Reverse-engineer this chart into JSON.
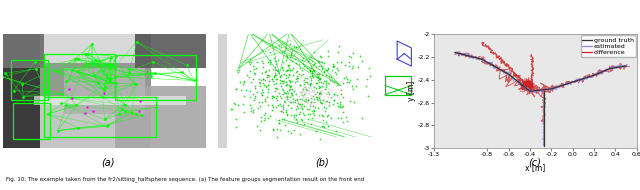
{
  "fig_width": 6.4,
  "fig_height": 1.9,
  "dpi": 100,
  "panel_a_label": "(a)",
  "panel_b_label": "(b)",
  "panel_c_label": "(c)",
  "caption": "Fig. 10: The example taken from the fr2/sitting_halfsphere sequence. (a) The feature groups segmentation result on the front end",
  "plot_c": {
    "xlim": [
      -1.3,
      0.6
    ],
    "ylim": [
      -3.0,
      -2.0
    ],
    "xlabel": "x [m]",
    "ylabel": "y [m]",
    "xticks": [
      -1.3,
      -0.8,
      -0.6,
      -0.4,
      -0.2,
      0.0,
      0.2,
      0.4,
      0.6
    ],
    "ytick_vals": [
      -3.0,
      -2.8,
      -2.6,
      -2.4,
      -2.2,
      -2.0
    ],
    "ytick_labels": [
      "-3",
      "-2.8",
      "-2.6",
      "-2.4",
      "-2.2",
      "-2"
    ],
    "legend": [
      "ground truth",
      "estimated",
      "difference"
    ],
    "ground_truth_color": "#333333",
    "estimated_color": "#8888ee",
    "difference_color": "#cc2222",
    "bg_color": "#e8e8e8"
  },
  "panel_bg_a": "#888888",
  "panel_bg_b": "#707070"
}
